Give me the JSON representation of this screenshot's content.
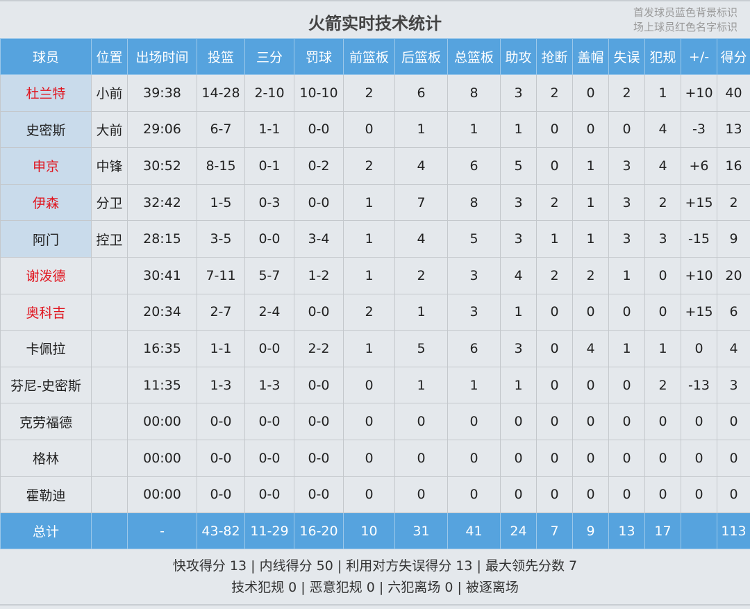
{
  "title": "火箭实时技术统计",
  "legend": [
    "首发球员蓝色背景标识",
    "场上球员红色名字标识"
  ],
  "colors": {
    "header": "#56a3de",
    "starter_bg": "#c9dbeb",
    "on_court_name": "#e0141e"
  },
  "columns": [
    "球员",
    "位置",
    "出场时间",
    "投篮",
    "三分",
    "罚球",
    "前篮板",
    "后篮板",
    "总篮板",
    "助攻",
    "抢断",
    "盖帽",
    "失误",
    "犯规",
    "+/-",
    "得分"
  ],
  "players": [
    {
      "name": "杜兰特",
      "starter": true,
      "on_court": true,
      "stats": [
        "小前",
        "39:38",
        "14-28",
        "2-10",
        "10-10",
        "2",
        "6",
        "8",
        "3",
        "2",
        "0",
        "2",
        "1",
        "+10",
        "40"
      ]
    },
    {
      "name": "史密斯",
      "starter": true,
      "on_court": false,
      "stats": [
        "大前",
        "29:06",
        "6-7",
        "1-1",
        "0-0",
        "0",
        "1",
        "1",
        "1",
        "0",
        "0",
        "0",
        "4",
        "-3",
        "13"
      ]
    },
    {
      "name": "申京",
      "starter": true,
      "on_court": true,
      "stats": [
        "中锋",
        "30:52",
        "8-15",
        "0-1",
        "0-2",
        "2",
        "4",
        "6",
        "5",
        "0",
        "1",
        "3",
        "4",
        "+6",
        "16"
      ]
    },
    {
      "name": "伊森",
      "starter": true,
      "on_court": true,
      "stats": [
        "分卫",
        "32:42",
        "1-5",
        "0-3",
        "0-0",
        "1",
        "7",
        "8",
        "3",
        "2",
        "1",
        "3",
        "2",
        "+15",
        "2"
      ]
    },
    {
      "name": "阿门",
      "starter": true,
      "on_court": false,
      "stats": [
        "控卫",
        "28:15",
        "3-5",
        "0-0",
        "3-4",
        "1",
        "4",
        "5",
        "3",
        "1",
        "1",
        "3",
        "3",
        "-15",
        "9"
      ]
    },
    {
      "name": "谢泼德",
      "starter": false,
      "on_court": true,
      "stats": [
        "",
        "30:41",
        "7-11",
        "5-7",
        "1-2",
        "1",
        "2",
        "3",
        "4",
        "2",
        "2",
        "1",
        "0",
        "+10",
        "20"
      ]
    },
    {
      "name": "奥科吉",
      "starter": false,
      "on_court": true,
      "stats": [
        "",
        "20:34",
        "2-7",
        "2-4",
        "0-0",
        "2",
        "1",
        "3",
        "1",
        "0",
        "0",
        "0",
        "0",
        "+15",
        "6"
      ]
    },
    {
      "name": "卡佩拉",
      "starter": false,
      "on_court": false,
      "stats": [
        "",
        "16:35",
        "1-1",
        "0-0",
        "2-2",
        "1",
        "5",
        "6",
        "3",
        "0",
        "4",
        "1",
        "1",
        "0",
        "4"
      ]
    },
    {
      "name": "芬尼-史密斯",
      "starter": false,
      "on_court": false,
      "stats": [
        "",
        "11:35",
        "1-3",
        "1-3",
        "0-0",
        "0",
        "1",
        "1",
        "1",
        "0",
        "0",
        "0",
        "2",
        "-13",
        "3"
      ]
    },
    {
      "name": "克劳福德",
      "starter": false,
      "on_court": false,
      "stats": [
        "",
        "00:00",
        "0-0",
        "0-0",
        "0-0",
        "0",
        "0",
        "0",
        "0",
        "0",
        "0",
        "0",
        "0",
        "0",
        "0"
      ]
    },
    {
      "name": "格林",
      "starter": false,
      "on_court": false,
      "stats": [
        "",
        "00:00",
        "0-0",
        "0-0",
        "0-0",
        "0",
        "0",
        "0",
        "0",
        "0",
        "0",
        "0",
        "0",
        "0",
        "0"
      ]
    },
    {
      "name": "霍勒迪",
      "starter": false,
      "on_court": false,
      "stats": [
        "",
        "00:00",
        "0-0",
        "0-0",
        "0-0",
        "0",
        "0",
        "0",
        "0",
        "0",
        "0",
        "0",
        "0",
        "0",
        "0"
      ]
    }
  ],
  "total": {
    "label": "总计",
    "stats": [
      "",
      "-",
      "43-82",
      "11-29",
      "16-20",
      "10",
      "31",
      "41",
      "24",
      "7",
      "9",
      "13",
      "17",
      "",
      "113"
    ]
  },
  "footer": {
    "line1": "快攻得分 13 | 内线得分 50 | 利用对方失误得分 13 | 最大领先分数 7",
    "line2": "技术犯规 0 | 恶意犯规 0 | 六犯离场 0 | 被逐离场"
  }
}
